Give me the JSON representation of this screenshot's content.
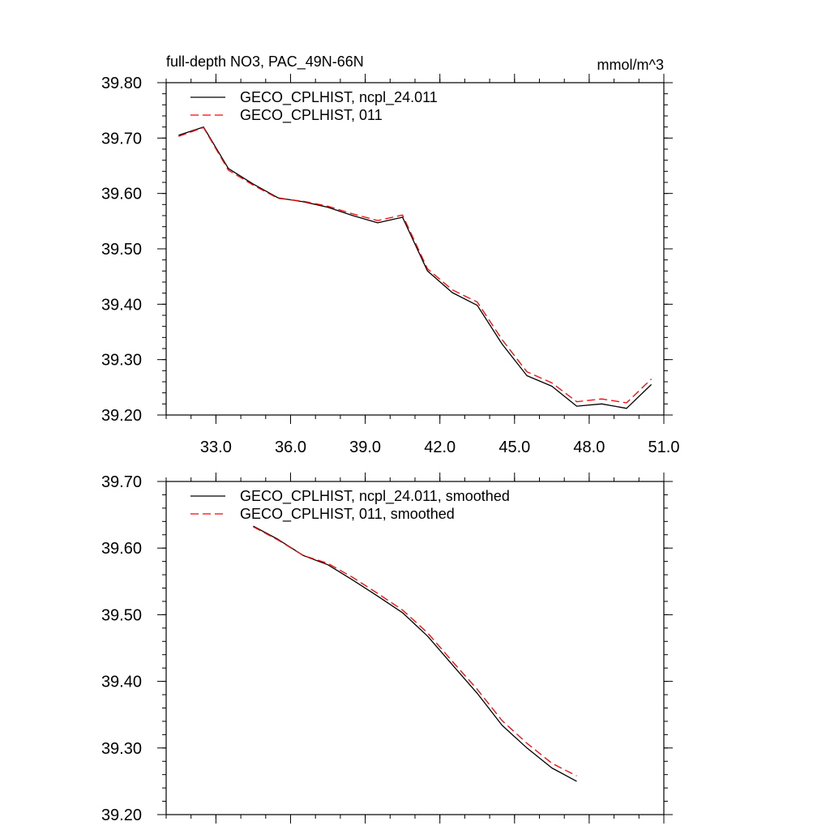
{
  "chart_data": [
    {
      "type": "line",
      "title": "full-depth NO3, PAC_49N-66N",
      "units": "mmol/m^3",
      "xlim": [
        31.0,
        51.0
      ],
      "ylim": [
        39.2,
        39.8
      ],
      "xticks": [
        "33.0",
        "36.0",
        "39.0",
        "42.0",
        "45.0",
        "48.0",
        "51.0"
      ],
      "yticks": [
        "39.20",
        "39.30",
        "39.40",
        "39.50",
        "39.60",
        "39.70",
        "39.80"
      ],
      "x": [
        31.5,
        32.5,
        33.5,
        34.5,
        35.5,
        36.5,
        37.5,
        38.5,
        39.5,
        40.5,
        41.5,
        42.5,
        43.5,
        44.5,
        45.5,
        46.5,
        47.5,
        48.5,
        49.5,
        50.5
      ],
      "series": [
        {
          "name": "GECO_CPLHIST, ncpl_24.011",
          "color": "#000000",
          "dash": "solid",
          "values": [
            39.705,
            39.72,
            39.645,
            39.617,
            39.592,
            39.585,
            39.575,
            39.56,
            39.547,
            39.557,
            39.46,
            39.421,
            39.398,
            39.328,
            39.271,
            39.252,
            39.216,
            39.22,
            39.212,
            39.255
          ]
        },
        {
          "name": "GECO_CPLHIST, 011",
          "color": "#ff0000",
          "dash": "dashed",
          "values": [
            39.703,
            39.719,
            39.642,
            39.615,
            39.591,
            39.586,
            39.577,
            39.563,
            39.551,
            39.561,
            39.464,
            39.426,
            39.404,
            39.336,
            39.278,
            39.258,
            39.224,
            39.229,
            39.222,
            39.265
          ]
        }
      ]
    },
    {
      "type": "line",
      "xlim": [
        31.0,
        51.0
      ],
      "ylim": [
        39.2,
        39.7
      ],
      "yticks": [
        "39.20",
        "39.30",
        "39.40",
        "39.50",
        "39.60",
        "39.70"
      ],
      "x": [
        34.5,
        35.5,
        36.5,
        37.5,
        38.5,
        39.5,
        40.5,
        41.5,
        42.5,
        43.5,
        44.5,
        45.5,
        46.5,
        47.5
      ],
      "series": [
        {
          "name": "GECO_CPLHIST, ncpl_24.011, smoothed",
          "color": "#000000",
          "dash": "solid",
          "values": [
            39.633,
            39.613,
            39.589,
            39.575,
            39.552,
            39.528,
            39.503,
            39.468,
            39.425,
            39.382,
            39.334,
            39.3,
            39.27,
            39.25
          ]
        },
        {
          "name": "GECO_CPLHIST, 011, smoothed",
          "color": "#ff0000",
          "dash": "dashed",
          "values": [
            39.632,
            39.612,
            39.589,
            39.577,
            39.556,
            39.532,
            39.507,
            39.473,
            39.43,
            39.388,
            39.341,
            39.307,
            39.277,
            39.258
          ]
        }
      ]
    }
  ]
}
